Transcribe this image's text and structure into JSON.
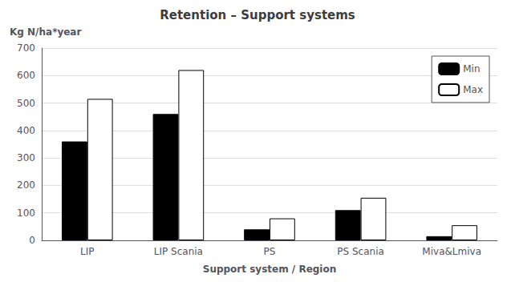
{
  "chart_data": {
    "type": "bar",
    "title": "Retention – Support systems",
    "xlabel": "Support system / Region",
    "ylabel": "Kg N/ha*year",
    "categories": [
      "LIP",
      "LIP Scania",
      "PS",
      "PS Scania",
      "Miva&Lmiva"
    ],
    "series": [
      {
        "name": "Min",
        "color": "#000000",
        "values": [
          360,
          460,
          40,
          110,
          15
        ]
      },
      {
        "name": "Max",
        "color": "#ffffff",
        "values": [
          515,
          620,
          80,
          155,
          55
        ]
      }
    ],
    "ylim": [
      0,
      700
    ],
    "yticks": [
      0,
      100,
      200,
      300,
      400,
      500,
      600,
      700
    ],
    "grid": true,
    "legend": "upper right"
  }
}
